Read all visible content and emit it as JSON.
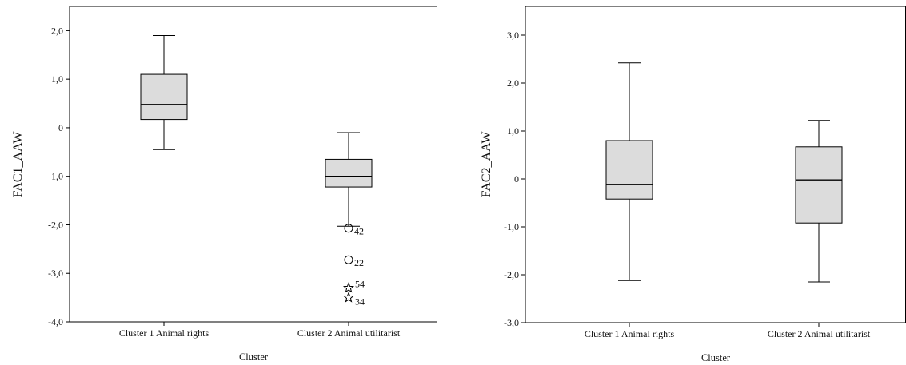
{
  "chart_data": [
    {
      "type": "boxplot",
      "xlabel": "Cluster",
      "ylabel": "FAC1_AAW",
      "ylim": [
        -4.0,
        2.5
      ],
      "yticks": [
        2.0,
        1.0,
        0.0,
        -1.0,
        -2.0,
        -3.0,
        -4.0
      ],
      "ytick_labels": [
        "2,0",
        "1,0",
        "0",
        "-1,0",
        "-2,0",
        "-3,0",
        "-4,0"
      ],
      "categories": [
        "Cluster 1 Animal rights",
        "Cluster 2 Animal utilitarist"
      ],
      "boxes": [
        {
          "whisker_low": -0.45,
          "q1": 0.17,
          "median": 0.48,
          "q3": 1.1,
          "whisker_high": 1.9,
          "outliers": []
        },
        {
          "whisker_low": -2.03,
          "q1": -1.22,
          "median": -1.0,
          "q3": -0.65,
          "whisker_high": -0.1,
          "outliers": [
            {
              "value": -2.07,
              "label": "42",
              "marker": "circle"
            },
            {
              "value": -2.72,
              "label": "22",
              "marker": "circle"
            },
            {
              "value": -3.3,
              "label": "54",
              "marker": "star"
            },
            {
              "value": -3.5,
              "label": "34",
              "marker": "star"
            }
          ]
        }
      ]
    },
    {
      "type": "boxplot",
      "xlabel": "Cluster",
      "ylabel": "FAC2_AAW",
      "ylim": [
        -3.0,
        3.6
      ],
      "yticks": [
        3.0,
        2.0,
        1.0,
        0.0,
        -1.0,
        -2.0,
        -3.0
      ],
      "ytick_labels": [
        "3,0",
        "2,0",
        "1,0",
        "0",
        "-1,0",
        "-2,0",
        "-3,0"
      ],
      "categories": [
        "Cluster 1 Animal rights",
        "Cluster 2 Animal utilitarist"
      ],
      "boxes": [
        {
          "whisker_low": -2.12,
          "q1": -0.42,
          "median": -0.12,
          "q3": 0.8,
          "whisker_high": 2.42,
          "outliers": []
        },
        {
          "whisker_low": -2.15,
          "q1": -0.92,
          "median": -0.02,
          "q3": 0.67,
          "whisker_high": 1.22,
          "outliers": []
        }
      ]
    }
  ]
}
